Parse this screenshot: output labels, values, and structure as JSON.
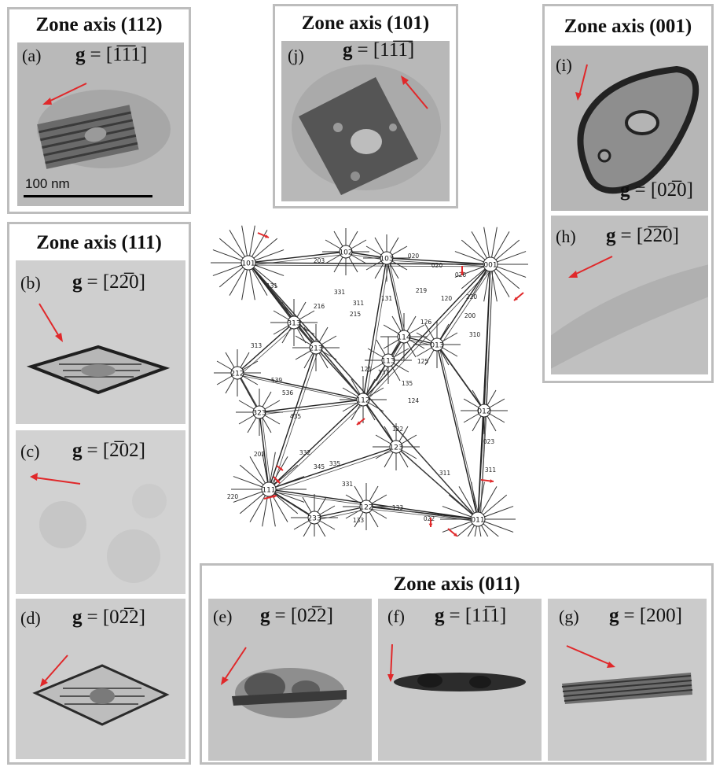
{
  "panels": {
    "p112": {
      "title": "Zone axis (112)",
      "a": {
        "label": "(a)",
        "g": "[1̅1̅1]"
      },
      "scale": "100 nm"
    },
    "p111": {
      "title": "Zone axis (111)",
      "b": {
        "label": "(b)",
        "g": "[22̅0]"
      },
      "c": {
        "label": "(c)",
        "g": "[2̅02]"
      },
      "d": {
        "label": "(d)",
        "g": "[02̅2]"
      }
    },
    "p101": {
      "title": "Zone axis (101)",
      "j": {
        "label": "(j)",
        "g": "[11̅1̅]"
      }
    },
    "p001": {
      "title": "Zone axis (001)",
      "i": {
        "label": "(i)",
        "g": "[02̅0]"
      },
      "h": {
        "label": "(h)",
        "g": "[2̅2̅0]"
      }
    },
    "p011": {
      "title": "Zone axis (011)",
      "e": {
        "label": "(e)",
        "g": "[02̅2]"
      },
      "f": {
        "label": "(f)",
        "g": "[11̅1]"
      },
      "g": {
        "label": "(g)",
        "g": "[200]"
      }
    }
  },
  "g_symbol": "g",
  "equals": "=",
  "stereo": {
    "poles": [
      "101",
      "102",
      "103",
      "001",
      "313",
      "213",
      "112",
      "113",
      "114",
      "013",
      "012",
      "212",
      "323",
      "111",
      "123",
      "233",
      "122",
      "011"
    ],
    "small_labels": [
      "203",
      "020",
      "020",
      "131",
      "331",
      "311",
      "215",
      "216",
      "131",
      "125",
      "135",
      "124",
      "313",
      "539",
      "536",
      "435",
      "332",
      "345",
      "335",
      "331",
      "202",
      "220",
      "133",
      "133",
      "022",
      "311",
      "311",
      "023",
      "026",
      "220",
      "200",
      "310",
      "120",
      "219",
      "126",
      "122",
      "121",
      "131"
    ]
  },
  "colors": {
    "arrow": "#e0282a",
    "frame": "#bdbdbd"
  }
}
